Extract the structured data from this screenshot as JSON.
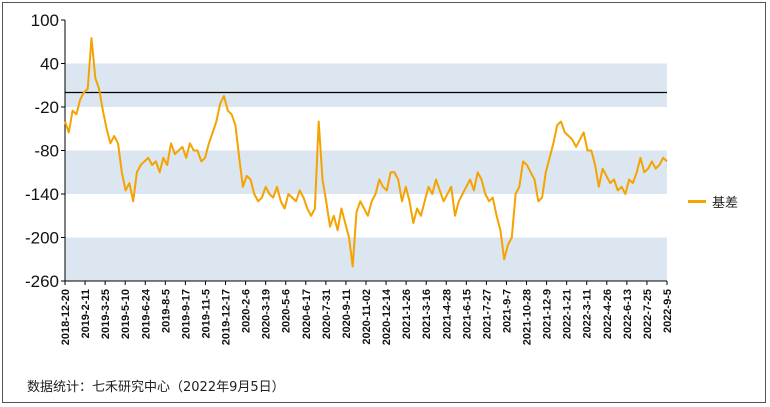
{
  "chart_data": {
    "type": "line",
    "ylim": [
      -260,
      100
    ],
    "y_ticks": [
      100,
      40,
      -20,
      -80,
      -140,
      -200,
      -260
    ],
    "reference_line": 0,
    "x_tick_labels": [
      "2018-12-20",
      "2019-2-11",
      "2019-3-25",
      "2019-5-10",
      "2019-6-24",
      "2019-8-5",
      "2019-9-17",
      "2019-11-5",
      "2019-12-17",
      "2020-2-6",
      "2020-3-19",
      "2020-5-6",
      "2020-6-17",
      "2020-7-31",
      "2020-9-11",
      "2020-11-02",
      "2020-12-14",
      "2021-1-26",
      "2021-3-16",
      "2021-4-28",
      "2021-6-15",
      "2021-7-27",
      "2021-9-7",
      "2021-10-28",
      "2021-12-9",
      "2022-1-21",
      "2022-3-11",
      "2022-4-26",
      "2022-6-13",
      "2022-7-25",
      "2022-9-5"
    ],
    "series": [
      {
        "name": "基差",
        "color": "#f5a300",
        "values": [
          -40,
          -55,
          -25,
          -30,
          -10,
          0,
          5,
          75,
          20,
          5,
          -25,
          -50,
          -70,
          -60,
          -70,
          -110,
          -135,
          -125,
          -150,
          -110,
          -100,
          -95,
          -90,
          -100,
          -95,
          -110,
          -90,
          -100,
          -70,
          -85,
          -80,
          -75,
          -90,
          -70,
          -80,
          -80,
          -95,
          -90,
          -70,
          -55,
          -40,
          -15,
          -5,
          -25,
          -30,
          -45,
          -90,
          -130,
          -115,
          -120,
          -140,
          -150,
          -145,
          -130,
          -140,
          -145,
          -130,
          -150,
          -160,
          -140,
          -145,
          -150,
          -135,
          -145,
          -160,
          -170,
          -160,
          -40,
          -120,
          -150,
          -185,
          -170,
          -190,
          -160,
          -180,
          -200,
          -240,
          -165,
          -150,
          -160,
          -170,
          -150,
          -140,
          -120,
          -130,
          -135,
          -110,
          -110,
          -120,
          -150,
          -130,
          -150,
          -180,
          -160,
          -170,
          -150,
          -130,
          -140,
          -120,
          -135,
          -150,
          -140,
          -130,
          -170,
          -150,
          -140,
          -130,
          -120,
          -135,
          -110,
          -120,
          -140,
          -150,
          -145,
          -170,
          -190,
          -230,
          -210,
          -200,
          -140,
          -130,
          -95,
          -100,
          -110,
          -120,
          -150,
          -145,
          -110,
          -90,
          -70,
          -45,
          -40,
          -55,
          -60,
          -65,
          -75,
          -65,
          -55,
          -80,
          -80,
          -100,
          -130,
          -105,
          -115,
          -125,
          -120,
          -135,
          -130,
          -140,
          -120,
          -125,
          -110,
          -90,
          -110,
          -105,
          -95,
          -105,
          -100,
          -90,
          -95
        ]
      }
    ],
    "legend_position": "right",
    "bands": [
      [
        40,
        -20
      ],
      [
        -80,
        -140
      ],
      [
        -200,
        -260
      ]
    ]
  },
  "legend": {
    "label": "基差",
    "color": "#f5a300"
  },
  "source": "数据统计：七禾研究中心（2022年9月5日）",
  "colors": {
    "band": "#dce6f1",
    "line": "#f5a300",
    "reference": "#000000"
  }
}
